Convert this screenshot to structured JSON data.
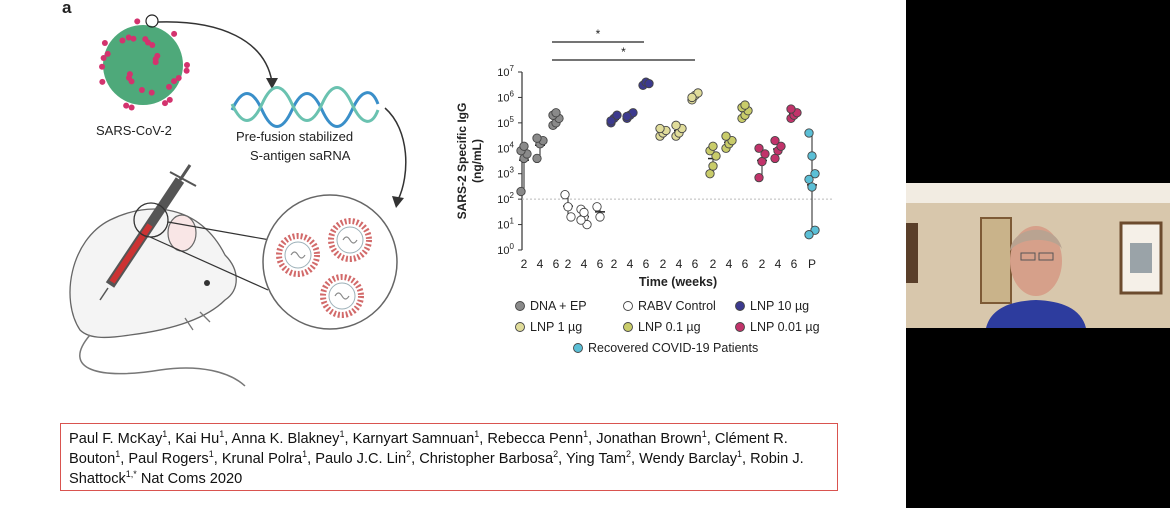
{
  "slide": {
    "panel_letter": "a",
    "schematic": {
      "virus_label": "SARS-CoV-2",
      "rna_label_line1": "Pre-fusion stabilized",
      "rna_label_line2": "S-antigen saRNA"
    },
    "credits": {
      "authors": [
        {
          "name": "Paul F. McKay",
          "aff": "1"
        },
        {
          "name": "Kai Hu",
          "aff": "1"
        },
        {
          "name": "Anna K. Blakney",
          "aff": "1"
        },
        {
          "name": "Karnyart Samnuan",
          "aff": "1"
        },
        {
          "name": "Rebecca Penn",
          "aff": "1"
        },
        {
          "name": "Jonathan Brown",
          "aff": "1"
        },
        {
          "name": "Clément R. Bouton",
          "aff": "1"
        },
        {
          "name": "Paul Rogers",
          "aff": "1"
        },
        {
          "name": "Krunal Polra",
          "aff": "1"
        },
        {
          "name": "Paulo J.C. Lin",
          "aff": "2"
        },
        {
          "name": "Christopher Barbosa",
          "aff": "2"
        },
        {
          "name": "Ying Tam",
          "aff": "2"
        },
        {
          "name": "Wendy Barclay",
          "aff": "1"
        },
        {
          "name": "Robin J. Shattock",
          "aff": "1,*"
        }
      ],
      "journal": "Nat Coms 2020"
    }
  },
  "chart_data": {
    "type": "scatter",
    "yscale": "log",
    "ylabel_line1": "SARS-2 Specific IgG",
    "ylabel_line2": "(ng/mL)",
    "xlabel": "Time (weeks)",
    "y_ticks": [
      {
        "base": "10",
        "exp": "0"
      },
      {
        "base": "10",
        "exp": "1"
      },
      {
        "base": "10",
        "exp": "2"
      },
      {
        "base": "10",
        "exp": "3"
      },
      {
        "base": "10",
        "exp": "4"
      },
      {
        "base": "10",
        "exp": "5"
      },
      {
        "base": "10",
        "exp": "6"
      },
      {
        "base": "10",
        "exp": "7"
      }
    ],
    "ylim_log10": [
      0,
      7
    ],
    "detection_limit": 100,
    "significance": [
      {
        "label": "*",
        "from_group": 0,
        "to_group": 2
      },
      {
        "label": "*",
        "from_group": 0,
        "to_group": 3
      }
    ],
    "groups": [
      {
        "name": "DNA + EP",
        "color": "#8a8a8a",
        "hollow": false,
        "timepoints": [
          {
            "week": "2",
            "values": [
              200,
              4000,
              6000,
              8000,
              12000
            ]
          },
          {
            "week": "4",
            "values": [
              4000,
              15000,
              20000,
              25000
            ]
          },
          {
            "week": "6",
            "values": [
              80000,
              100000,
              150000,
              200000,
              250000
            ]
          }
        ]
      },
      {
        "name": "RABV Control",
        "color": "#ffffff",
        "hollow": true,
        "timepoints": [
          {
            "week": "2",
            "values": [
              150,
              50,
              20
            ]
          },
          {
            "week": "4",
            "values": [
              40,
              20,
              10,
              15,
              30
            ]
          },
          {
            "week": "6",
            "values": [
              50,
              20
            ]
          }
        ]
      },
      {
        "name": "LNP 10 µg",
        "color": "#3c3a8e",
        "hollow": false,
        "timepoints": [
          {
            "week": "2",
            "values": [
              100000,
              150000,
              200000,
              120000
            ]
          },
          {
            "week": "4",
            "values": [
              150000,
              200000,
              250000,
              180000
            ]
          },
          {
            "week": "6",
            "values": [
              3000000,
              4000000,
              3500000
            ]
          }
        ]
      },
      {
        "name": "LNP 1 µg",
        "color": "#e0dc9a",
        "hollow": false,
        "timepoints": [
          {
            "week": "2",
            "values": [
              30000,
              40000,
              50000,
              60000
            ]
          },
          {
            "week": "4",
            "values": [
              30000,
              40000,
              60000,
              80000
            ]
          },
          {
            "week": "6",
            "values": [
              800000,
              1200000,
              1500000,
              1000000
            ]
          }
        ]
      },
      {
        "name": "LNP 0.1 µg",
        "color": "#c9cc6a",
        "hollow": false,
        "timepoints": [
          {
            "week": "2",
            "values": [
              1000,
              2000,
              5000,
              8000,
              12000
            ]
          },
          {
            "week": "4",
            "values": [
              10000,
              15000,
              20000,
              30000
            ]
          },
          {
            "week": "6",
            "values": [
              150000,
              200000,
              300000,
              400000,
              500000
            ]
          }
        ]
      },
      {
        "name": "LNP 0.01 µg",
        "color": "#c1336a",
        "hollow": false,
        "timepoints": [
          {
            "week": "2",
            "values": [
              700,
              3000,
              6000,
              10000
            ]
          },
          {
            "week": "4",
            "values": [
              4000,
              8000,
              12000,
              20000
            ]
          },
          {
            "week": "6",
            "values": [
              150000,
              200000,
              250000,
              350000
            ]
          }
        ]
      },
      {
        "name": "Recovered COVID-19 Patients",
        "color": "#5bbfd6",
        "hollow": false,
        "timepoints": [
          {
            "week": "P",
            "values": [
              40000,
              5000,
              1000,
              600,
              300,
              6,
              4
            ]
          }
        ]
      }
    ]
  }
}
